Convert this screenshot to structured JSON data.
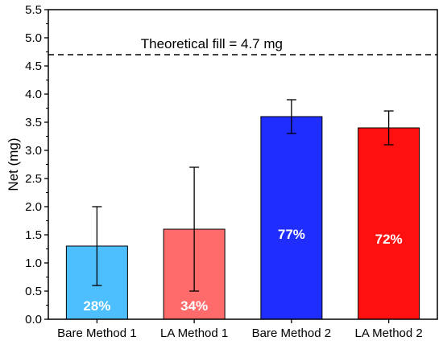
{
  "chart_data": {
    "type": "bar",
    "categories": [
      "Bare Method 1",
      "LA Method 1",
      "Bare Method 2",
      "LA Method 2"
    ],
    "values": [
      1.3,
      1.6,
      3.6,
      3.4
    ],
    "errors": [
      0.7,
      1.1,
      0.3,
      0.3
    ],
    "bar_labels": [
      "28%",
      "34%",
      "77%",
      "72%"
    ],
    "bar_colors": [
      "#4dbfff",
      "#ff6b6b",
      "#1f2dff",
      "#ff1010"
    ],
    "ylabel": "Net (mg)",
    "ylim": [
      0,
      5.5
    ],
    "yticks": [
      "0.0",
      "0.5",
      "1.0",
      "1.5",
      "2.0",
      "2.5",
      "3.0",
      "3.5",
      "4.0",
      "4.5",
      "5.0",
      "5.5"
    ],
    "reference_line": {
      "value": 4.7,
      "label": "Theoretical fill = 4.7 mg"
    },
    "grid": false
  }
}
